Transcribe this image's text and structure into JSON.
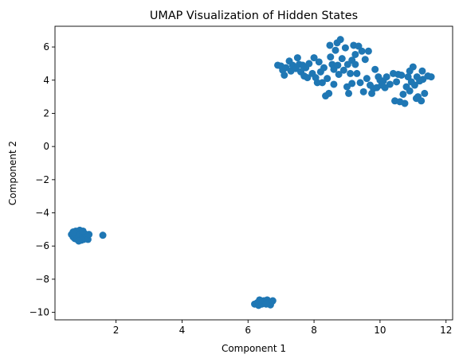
{
  "chart_data": {
    "type": "scatter",
    "title": "UMAP Visualization of Hidden States",
    "xlabel": "Component 1",
    "ylabel": "Component 2",
    "xlim": [
      0.15,
      12.2
    ],
    "ylim": [
      -10.45,
      7.25
    ],
    "xticks": [
      2,
      4,
      6,
      8,
      10,
      12
    ],
    "yticks": [
      -10,
      -8,
      -6,
      -4,
      -2,
      0,
      2,
      4,
      6
    ],
    "grid": false,
    "marker_color": "#1f77b4",
    "series": [
      {
        "points": [
          [
            0.65,
            -5.3
          ],
          [
            0.7,
            -5.45
          ],
          [
            0.72,
            -5.2
          ],
          [
            0.75,
            -5.55
          ],
          [
            0.78,
            -5.1
          ],
          [
            0.8,
            -5.35
          ],
          [
            0.82,
            -5.6
          ],
          [
            0.85,
            -5.25
          ],
          [
            0.88,
            -5.45
          ],
          [
            0.9,
            -5.05
          ],
          [
            0.92,
            -5.3
          ],
          [
            0.95,
            -5.65
          ],
          [
            0.98,
            -5.15
          ],
          [
            1.0,
            -5.4
          ],
          [
            1.02,
            -5.6
          ],
          [
            1.05,
            -5.25
          ],
          [
            1.08,
            -5.5
          ],
          [
            1.1,
            -5.35
          ],
          [
            1.15,
            -5.6
          ],
          [
            1.18,
            -5.3
          ],
          [
            0.7,
            -5.15
          ],
          [
            0.87,
            -5.7
          ],
          [
            1.0,
            -5.1
          ],
          [
            1.6,
            -5.35
          ],
          [
            6.2,
            -9.5
          ],
          [
            6.28,
            -9.42
          ],
          [
            6.32,
            -9.58
          ],
          [
            6.38,
            -9.38
          ],
          [
            6.42,
            -9.5
          ],
          [
            6.48,
            -9.3
          ],
          [
            6.52,
            -9.45
          ],
          [
            6.58,
            -9.25
          ],
          [
            6.62,
            -9.4
          ],
          [
            6.68,
            -9.55
          ],
          [
            6.72,
            -9.35
          ],
          [
            6.75,
            -9.3
          ],
          [
            6.35,
            -9.25
          ],
          [
            6.55,
            -9.5
          ],
          [
            6.9,
            4.9
          ],
          [
            7.0,
            4.85
          ],
          [
            7.05,
            4.6
          ],
          [
            7.1,
            4.3
          ],
          [
            7.15,
            4.75
          ],
          [
            7.25,
            5.15
          ],
          [
            7.3,
            4.55
          ],
          [
            7.35,
            4.9
          ],
          [
            7.45,
            4.7
          ],
          [
            7.5,
            5.35
          ],
          [
            7.55,
            4.95
          ],
          [
            7.6,
            4.5
          ],
          [
            7.7,
            4.25
          ],
          [
            7.75,
            4.75
          ],
          [
            7.8,
            4.15
          ],
          [
            7.85,
            5.0
          ],
          [
            7.95,
            4.4
          ],
          [
            8.0,
            5.35
          ],
          [
            8.05,
            4.15
          ],
          [
            8.1,
            3.85
          ],
          [
            8.15,
            5.1
          ],
          [
            8.2,
            4.5
          ],
          [
            8.3,
            4.75
          ],
          [
            8.35,
            3.05
          ],
          [
            8.4,
            4.1
          ],
          [
            8.45,
            3.2
          ],
          [
            8.48,
            6.1
          ],
          [
            8.5,
            5.4
          ],
          [
            8.55,
            4.95
          ],
          [
            8.6,
            4.65
          ],
          [
            8.65,
            5.8
          ],
          [
            8.7,
            6.25
          ],
          [
            8.72,
            4.9
          ],
          [
            8.75,
            4.35
          ],
          [
            8.8,
            6.45
          ],
          [
            8.85,
            5.3
          ],
          [
            8.9,
            4.6
          ],
          [
            8.95,
            5.95
          ],
          [
            9.0,
            3.6
          ],
          [
            9.02,
            4.95
          ],
          [
            9.05,
            3.2
          ],
          [
            9.1,
            4.4
          ],
          [
            9.15,
            5.2
          ],
          [
            9.2,
            6.1
          ],
          [
            9.25,
            4.95
          ],
          [
            9.3,
            4.4
          ],
          [
            9.35,
            6.05
          ],
          [
            9.4,
            3.85
          ],
          [
            9.45,
            5.75
          ],
          [
            9.5,
            3.3
          ],
          [
            9.55,
            5.25
          ],
          [
            9.6,
            4.1
          ],
          [
            9.65,
            5.75
          ],
          [
            9.7,
            3.7
          ],
          [
            9.75,
            3.2
          ],
          [
            9.8,
            3.5
          ],
          [
            9.85,
            4.65
          ],
          [
            9.9,
            3.55
          ],
          [
            10.0,
            4.0
          ],
          [
            10.1,
            3.95
          ],
          [
            10.15,
            3.55
          ],
          [
            10.2,
            4.2
          ],
          [
            10.3,
            3.75
          ],
          [
            10.4,
            4.4
          ],
          [
            10.45,
            2.75
          ],
          [
            10.5,
            3.9
          ],
          [
            10.55,
            4.35
          ],
          [
            10.6,
            2.7
          ],
          [
            10.65,
            4.3
          ],
          [
            10.7,
            3.15
          ],
          [
            10.75,
            2.6
          ],
          [
            10.8,
            3.6
          ],
          [
            10.85,
            4.2
          ],
          [
            10.9,
            3.35
          ],
          [
            10.95,
            3.9
          ],
          [
            11.0,
            4.8
          ],
          [
            11.05,
            3.7
          ],
          [
            11.1,
            2.9
          ],
          [
            11.12,
            4.2
          ],
          [
            11.15,
            3.0
          ],
          [
            11.2,
            3.95
          ],
          [
            11.25,
            2.75
          ],
          [
            11.28,
            4.55
          ],
          [
            11.3,
            4.05
          ],
          [
            11.35,
            3.2
          ],
          [
            11.45,
            4.25
          ],
          [
            11.55,
            4.2
          ],
          [
            10.9,
            4.55
          ],
          [
            10.05,
            3.7
          ],
          [
            9.95,
            4.2
          ],
          [
            9.15,
            3.8
          ],
          [
            8.25,
            3.85
          ],
          [
            7.65,
            4.9
          ],
          [
            8.6,
            3.75
          ],
          [
            9.25,
            5.55
          ]
        ]
      }
    ]
  }
}
